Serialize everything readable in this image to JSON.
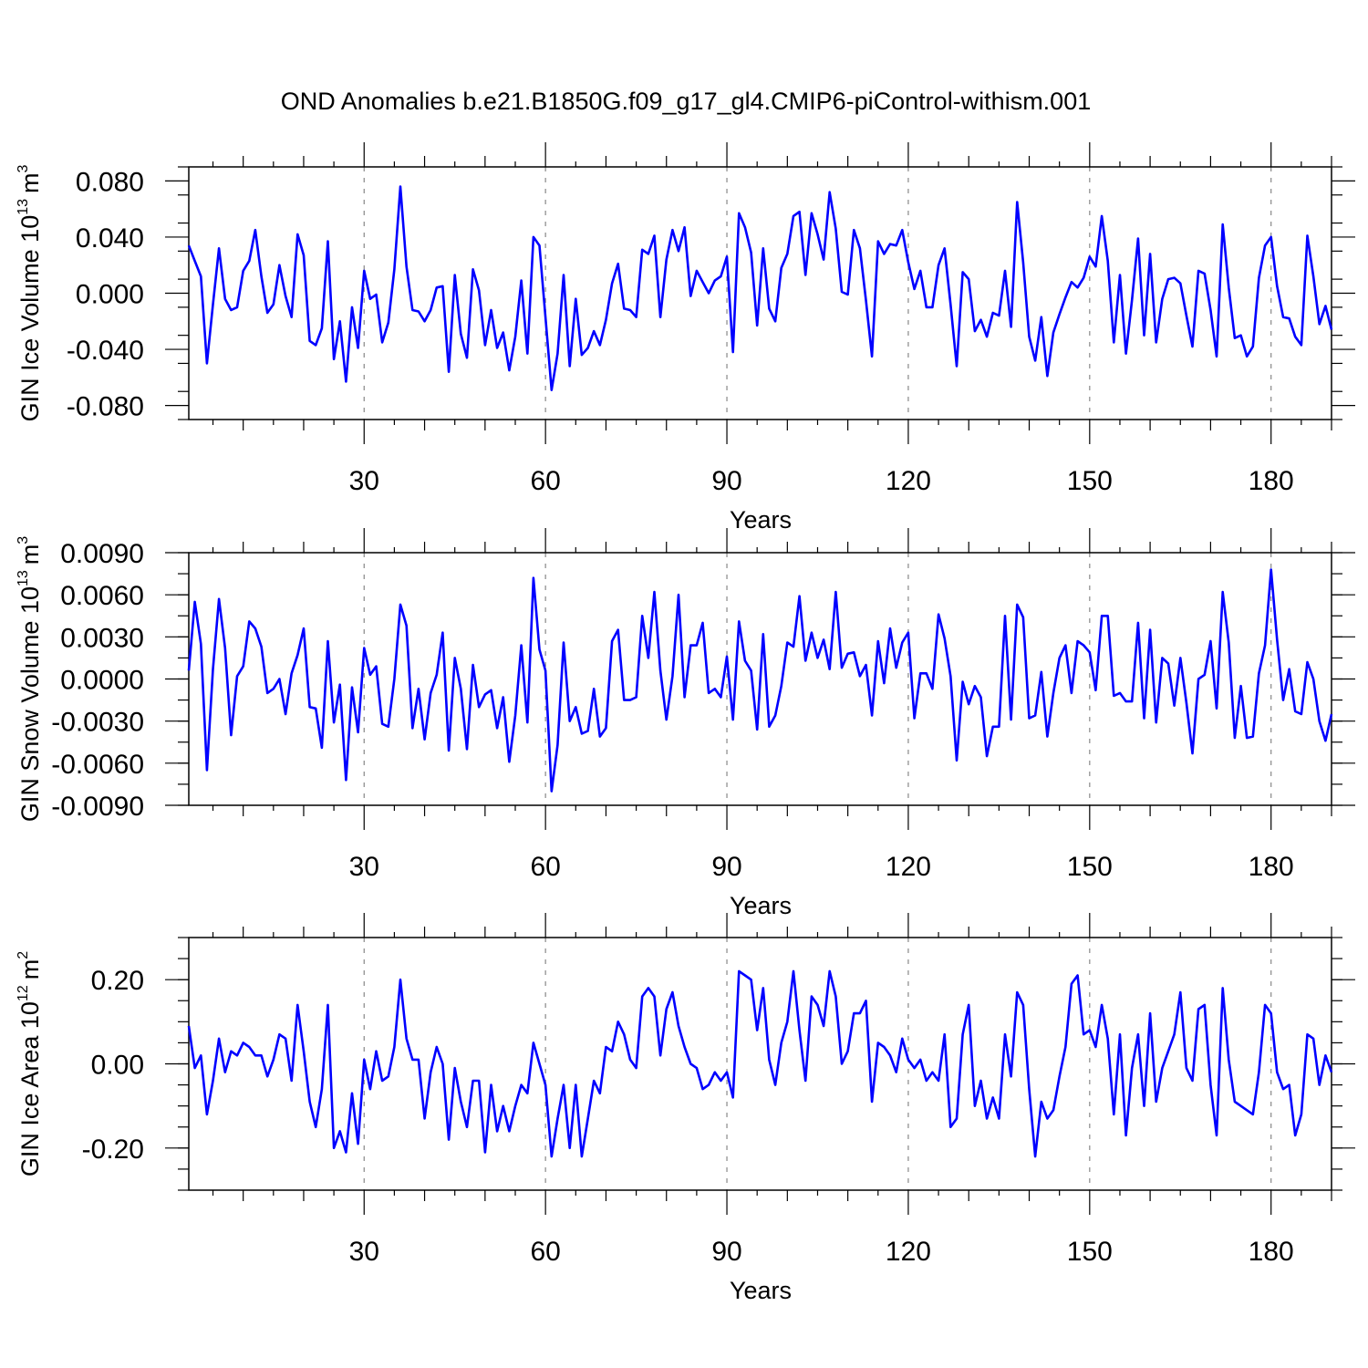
{
  "chart_data": [
    {
      "type": "line",
      "title": "OND Anomalies b.e21.B1850G.f09_g17_gl4.CMIP6-piControl-withism.001",
      "xlabel": "Years",
      "ylabel_main": "GIN Ice Volume 10",
      "ylabel_sup": "13",
      "ylabel_unit": "m",
      "ylabel_unit_sup": "3",
      "xlim": [
        1,
        190
      ],
      "ylim": [
        -0.09,
        0.09
      ],
      "xticks": [
        "30",
        "60",
        "90",
        "120",
        "150",
        "180"
      ],
      "yticks": [
        "0.080",
        "0.040",
        "0.000",
        "-0.040",
        "-0.080"
      ],
      "series": [
        {
          "name": "GIN Ice Volume",
          "color": "#0000ff",
          "values": [
            0.034,
            0.023,
            0.012,
            -0.05,
            -0.008,
            0.032,
            -0.004,
            -0.012,
            -0.01,
            0.016,
            0.023,
            0.045,
            0.012,
            -0.014,
            -0.008,
            0.02,
            -0.002,
            -0.017,
            0.042,
            0.027,
            -0.034,
            -0.037,
            -0.025,
            0.037,
            -0.047,
            -0.02,
            -0.063,
            -0.01,
            -0.039,
            0.016,
            -0.004,
            -0.001,
            -0.035,
            -0.021,
            0.017,
            0.076,
            0.019,
            -0.012,
            -0.013,
            -0.02,
            -0.012,
            0.004,
            0.005,
            -0.056,
            0.013,
            -0.029,
            -0.046,
            0.017,
            0.002,
            -0.037,
            -0.012,
            -0.039,
            -0.028,
            -0.055,
            -0.031,
            0.009,
            -0.043,
            0.04,
            0.034,
            -0.017,
            -0.069,
            -0.043,
            0.013,
            -0.052,
            -0.004,
            -0.044,
            -0.039,
            -0.027,
            -0.037,
            -0.019,
            0.007,
            0.021,
            -0.011,
            -0.012,
            -0.017,
            0.031,
            0.028,
            0.041,
            -0.017,
            0.024,
            0.045,
            0.03,
            0.047,
            -0.002,
            0.016,
            0.008,
            0.0,
            0.009,
            0.012,
            0.026,
            -0.042,
            0.057,
            0.047,
            0.029,
            -0.023,
            0.032,
            -0.011,
            -0.02,
            0.018,
            0.028,
            0.055,
            0.058,
            0.013,
            0.057,
            0.042,
            0.024,
            0.072,
            0.046,
            0.001,
            -0.001,
            0.045,
            0.032,
            -0.005,
            -0.045,
            0.037,
            0.028,
            0.035,
            0.034,
            0.045,
            0.022,
            0.003,
            0.016,
            -0.01,
            -0.01,
            0.02,
            0.032,
            -0.008,
            -0.052,
            0.015,
            0.01,
            -0.027,
            -0.019,
            -0.031,
            -0.014,
            -0.016,
            0.016,
            -0.024,
            0.065,
            0.022,
            -0.031,
            -0.048,
            -0.017,
            -0.059,
            -0.028,
            -0.015,
            -0.003,
            0.008,
            0.004,
            0.011,
            0.026,
            0.019,
            0.055,
            0.023,
            -0.035,
            0.013,
            -0.043,
            -0.005,
            0.039,
            -0.03,
            0.028,
            -0.035,
            -0.004,
            0.01,
            0.011,
            0.007,
            -0.016,
            -0.038,
            0.016,
            0.014,
            -0.012,
            -0.045,
            0.049,
            0.004,
            -0.032,
            -0.03,
            -0.045,
            -0.038,
            0.011,
            0.034,
            0.04,
            0.005,
            -0.017,
            -0.018,
            -0.031,
            -0.037,
            0.041,
            0.012,
            -0.022,
            -0.009,
            -0.026
          ]
        }
      ]
    },
    {
      "type": "line",
      "xlabel": "Years",
      "ylabel_main": "GIN Snow Volume 10",
      "ylabel_sup": "13",
      "ylabel_unit": "m",
      "ylabel_unit_sup": "3",
      "xlim": [
        1,
        190
      ],
      "ylim": [
        -0.009,
        0.009
      ],
      "xticks": [
        "30",
        "60",
        "90",
        "120",
        "150",
        "180"
      ],
      "yticks": [
        "0.0090",
        "0.0060",
        "0.0030",
        "0.0000",
        "-0.0030",
        "-0.0060",
        "-0.0090"
      ],
      "series": [
        {
          "name": "GIN Snow Volume",
          "color": "#0000ff",
          "values": [
            0.0006,
            0.0055,
            0.0025,
            -0.0065,
            0.0007,
            0.0057,
            0.0022,
            -0.004,
            0.0002,
            0.0009,
            0.0041,
            0.0036,
            0.0023,
            -0.001,
            -0.0007,
            0.0,
            -0.0025,
            0.0004,
            0.0017,
            0.0036,
            -0.002,
            -0.0021,
            -0.0049,
            0.0027,
            -0.0031,
            -0.0004,
            -0.0072,
            -0.0006,
            -0.0038,
            0.0022,
            0.0003,
            0.0009,
            -0.0032,
            -0.0034,
            0.0,
            0.0053,
            0.0038,
            -0.0035,
            -0.0007,
            -0.0043,
            -0.001,
            0.0003,
            0.0033,
            -0.0051,
            0.0015,
            -0.0007,
            -0.005,
            0.001,
            -0.002,
            -0.0011,
            -0.0008,
            -0.0035,
            -0.0013,
            -0.0059,
            -0.0026,
            0.0024,
            -0.0031,
            0.0072,
            0.0021,
            0.0006,
            -0.008,
            -0.0047,
            0.0026,
            -0.003,
            -0.002,
            -0.0039,
            -0.0037,
            -0.0007,
            -0.0041,
            -0.0035,
            0.0027,
            0.0035,
            -0.0015,
            -0.0015,
            -0.0013,
            0.0045,
            0.0015,
            0.0062,
            0.0006,
            -0.0029,
            0.0002,
            0.006,
            -0.0013,
            0.0024,
            0.0024,
            0.004,
            -0.001,
            -0.0007,
            -0.0013,
            0.0016,
            -0.0029,
            0.0041,
            0.0013,
            0.0006,
            -0.0036,
            0.0032,
            -0.0034,
            -0.0026,
            -0.0005,
            0.0026,
            0.0023,
            0.0059,
            0.0013,
            0.0033,
            0.0015,
            0.0028,
            0.0007,
            0.0062,
            0.0008,
            0.0018,
            0.0019,
            0.0002,
            0.001,
            -0.0026,
            0.0027,
            -0.0003,
            0.0036,
            0.0008,
            0.0026,
            0.0033,
            -0.0028,
            0.0004,
            0.0004,
            -0.0007,
            0.0046,
            0.0029,
            0.0002,
            -0.0058,
            -0.0002,
            -0.0018,
            -0.0005,
            -0.0013,
            -0.0055,
            -0.0034,
            -0.0034,
            0.0045,
            -0.0029,
            0.0053,
            0.0044,
            -0.0028,
            -0.0026,
            0.0005,
            -0.0041,
            -0.001,
            0.0015,
            0.0024,
            -0.001,
            0.0027,
            0.0024,
            0.0019,
            -0.0008,
            0.0045,
            0.0045,
            -0.0012,
            -0.001,
            -0.0016,
            -0.0016,
            0.004,
            -0.0028,
            0.0035,
            -0.0031,
            0.0015,
            0.0011,
            -0.0019,
            0.0015,
            -0.0017,
            -0.0053,
            0.0,
            0.0003,
            0.0027,
            -0.0021,
            0.0062,
            0.0026,
            -0.0042,
            -0.0005,
            -0.0042,
            -0.0041,
            0.0004,
            0.0024,
            0.0078,
            0.0028,
            -0.0015,
            0.0007,
            -0.0023,
            -0.0025,
            0.0012,
            0.0,
            -0.003,
            -0.0044,
            -0.0025
          ]
        }
      ]
    },
    {
      "type": "line",
      "xlabel": "Years",
      "ylabel_main": "GIN Ice Area 10",
      "ylabel_sup": "12",
      "ylabel_unit": "m",
      "ylabel_unit_sup": "2",
      "xlim": [
        1,
        190
      ],
      "ylim": [
        -0.3,
        0.3
      ],
      "xticks": [
        "30",
        "60",
        "90",
        "120",
        "150",
        "180"
      ],
      "yticks": [
        "0.20",
        "0.00",
        "-0.20"
      ],
      "series": [
        {
          "name": "GIN Ice Area",
          "color": "#0000ff",
          "values": [
            0.09,
            -0.01,
            0.02,
            -0.12,
            -0.04,
            0.06,
            -0.02,
            0.03,
            0.02,
            0.05,
            0.04,
            0.02,
            0.02,
            -0.03,
            0.01,
            0.07,
            0.06,
            -0.04,
            0.14,
            0.03,
            -0.09,
            -0.15,
            -0.06,
            0.14,
            -0.2,
            -0.16,
            -0.21,
            -0.07,
            -0.19,
            0.01,
            -0.06,
            0.03,
            -0.04,
            -0.03,
            0.04,
            0.2,
            0.06,
            0.01,
            0.01,
            -0.13,
            -0.02,
            0.04,
            0.0,
            -0.18,
            -0.01,
            -0.09,
            -0.15,
            -0.04,
            -0.04,
            -0.21,
            -0.05,
            -0.16,
            -0.1,
            -0.16,
            -0.1,
            -0.05,
            -0.07,
            0.05,
            0.0,
            -0.05,
            -0.22,
            -0.13,
            -0.05,
            -0.2,
            -0.05,
            -0.22,
            -0.13,
            -0.04,
            -0.07,
            0.04,
            0.03,
            0.1,
            0.07,
            0.01,
            -0.01,
            0.16,
            0.18,
            0.16,
            0.02,
            0.13,
            0.17,
            0.09,
            0.04,
            0.0,
            -0.01,
            -0.06,
            -0.05,
            -0.02,
            -0.04,
            -0.02,
            -0.08,
            0.22,
            0.21,
            0.2,
            0.08,
            0.18,
            0.01,
            -0.05,
            0.05,
            0.1,
            0.22,
            0.08,
            -0.04,
            0.16,
            0.14,
            0.09,
            0.22,
            0.16,
            0.0,
            0.03,
            0.12,
            0.12,
            0.15,
            -0.09,
            0.05,
            0.04,
            0.02,
            -0.02,
            0.06,
            0.01,
            -0.01,
            0.01,
            -0.04,
            -0.02,
            -0.04,
            0.07,
            -0.15,
            -0.13,
            0.07,
            0.14,
            -0.1,
            -0.04,
            -0.13,
            -0.08,
            -0.13,
            0.07,
            -0.03,
            0.17,
            0.14,
            -0.06,
            -0.22,
            -0.09,
            -0.13,
            -0.11,
            -0.03,
            0.04,
            0.19,
            0.21,
            0.07,
            0.08,
            0.04,
            0.14,
            0.06,
            -0.12,
            0.07,
            -0.17,
            -0.01,
            0.07,
            -0.1,
            0.12,
            -0.09,
            -0.01,
            0.03,
            0.07,
            0.17,
            -0.01,
            -0.04,
            0.13,
            0.14,
            -0.05,
            -0.17,
            0.18,
            0.01,
            -0.09,
            -0.1,
            -0.11,
            -0.12,
            -0.02,
            0.14,
            0.12,
            -0.02,
            -0.06,
            -0.05,
            -0.17,
            -0.12,
            0.07,
            0.06,
            -0.05,
            0.02,
            -0.02
          ]
        }
      ]
    }
  ]
}
